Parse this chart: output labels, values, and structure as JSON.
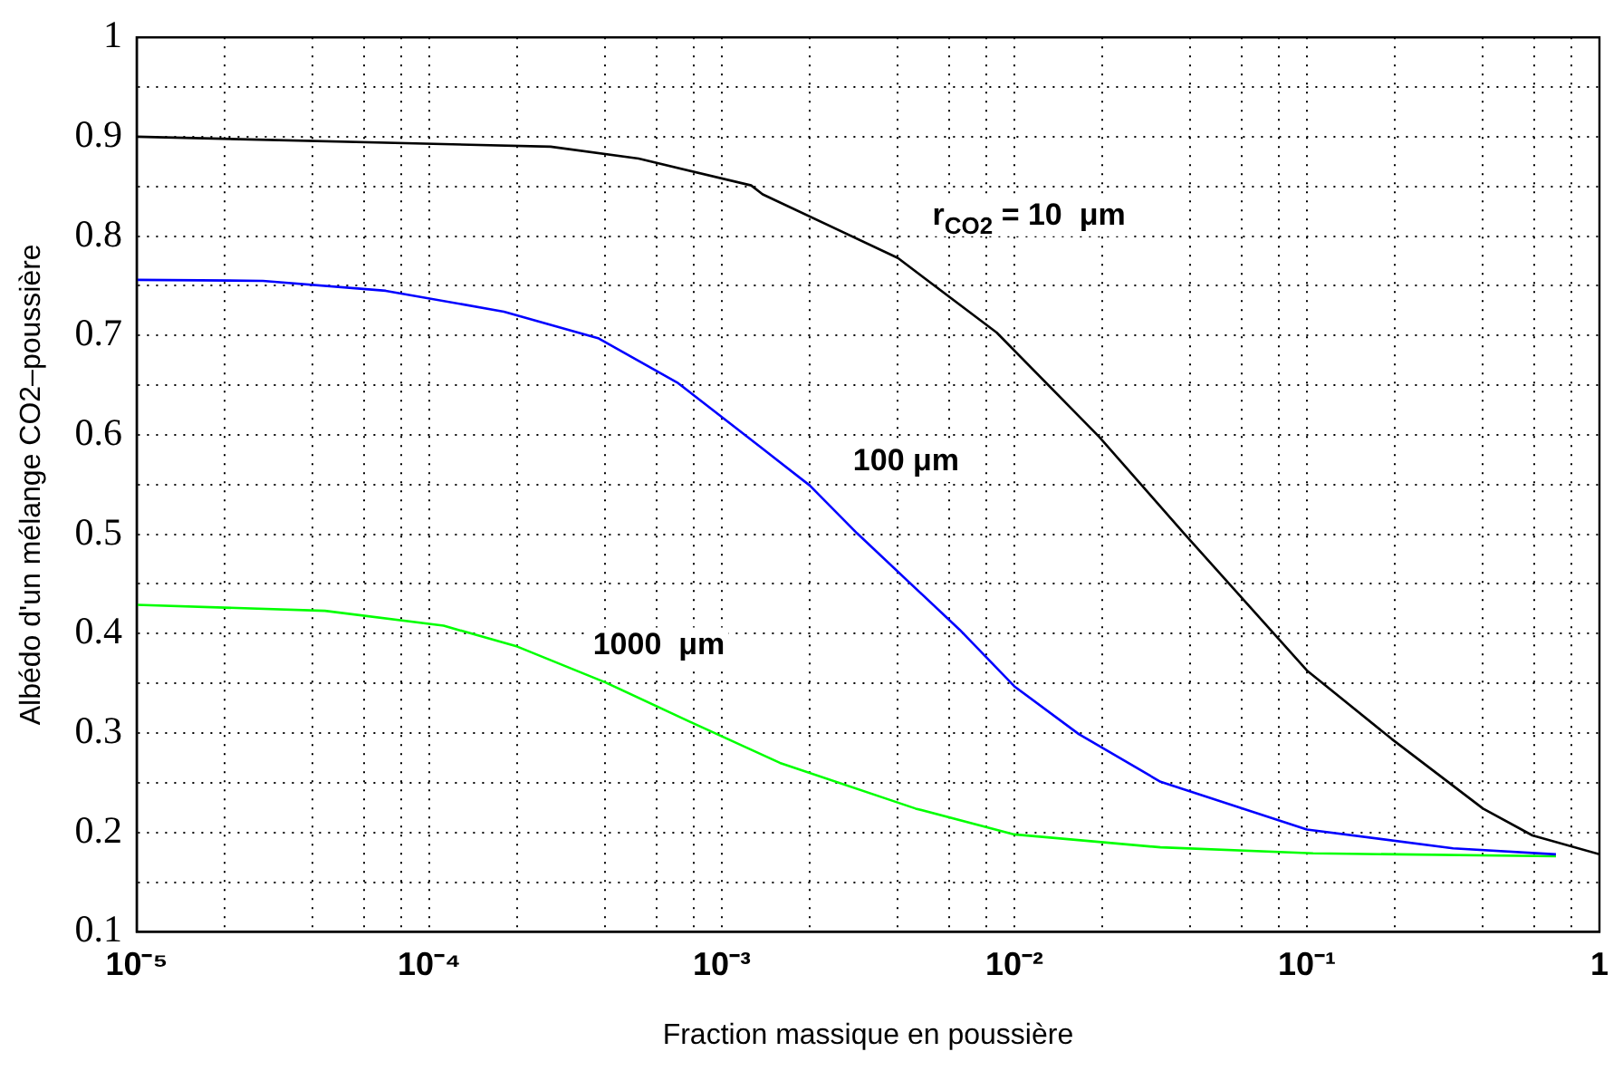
{
  "chart_data": {
    "type": "line",
    "xlabel": "Fraction massique en poussière",
    "ylabel": "Albédo d'un mélange CO2–poussière",
    "log": "x",
    "grid": true,
    "legend": false,
    "marker": "none",
    "line_style": "solid",
    "xlim": [
      1e-05,
      1
    ],
    "ylim": [
      0.1,
      1
    ],
    "xticks": [
      {
        "value": 1e-05,
        "label": "10⁻⁵"
      },
      {
        "value": 2e-05,
        "label": null
      },
      {
        "value": 4e-05,
        "label": null
      },
      {
        "value": 6e-05,
        "label": null
      },
      {
        "value": 8e-05,
        "label": null
      },
      {
        "value": 0.0001,
        "label": "10⁻⁴"
      },
      {
        "value": 0.0002,
        "label": null
      },
      {
        "value": 0.0004,
        "label": null
      },
      {
        "value": 0.0006,
        "label": null
      },
      {
        "value": 0.0008,
        "label": null
      },
      {
        "value": 0.001,
        "label": "10⁻³"
      },
      {
        "value": 0.002,
        "label": null
      },
      {
        "value": 0.004,
        "label": null
      },
      {
        "value": 0.006,
        "label": null
      },
      {
        "value": 0.008,
        "label": null
      },
      {
        "value": 0.01,
        "label": "10⁻²"
      },
      {
        "value": 0.02,
        "label": null
      },
      {
        "value": 0.04,
        "label": null
      },
      {
        "value": 0.06,
        "label": null
      },
      {
        "value": 0.08,
        "label": null
      },
      {
        "value": 0.1,
        "label": "10⁻¹"
      },
      {
        "value": 0.2,
        "label": null
      },
      {
        "value": 0.4,
        "label": null
      },
      {
        "value": 0.6,
        "label": null
      },
      {
        "value": 0.8,
        "label": null
      },
      1
    ],
    "yticks": [
      0.1,
      {
        "value": 0.15,
        "label": null
      },
      0.2,
      {
        "value": 0.25,
        "label": null
      },
      0.3,
      {
        "value": 0.35,
        "label": null
      },
      0.4,
      {
        "value": 0.45,
        "label": null
      },
      0.5,
      {
        "value": 0.55,
        "label": null
      },
      0.6,
      {
        "value": 0.65,
        "label": null
      },
      0.7,
      {
        "value": 0.75,
        "label": null
      },
      0.8,
      {
        "value": 0.85,
        "label": null
      },
      0.9,
      {
        "value": 0.95,
        "label": null
      },
      1
    ],
    "series": [
      {
        "color": "#000000",
        "x": [
          1e-05,
          0.00026,
          0.00052,
          0.00126,
          0.00138,
          0.004,
          0.0087,
          0.0195,
          0.038,
          0.1,
          0.195,
          0.4,
          0.59,
          1
        ],
        "values": [
          0.9,
          0.89,
          0.878,
          0.851,
          0.842,
          0.778,
          0.703,
          0.598,
          0.501,
          0.363,
          0.294,
          0.224,
          0.197,
          0.178
        ]
      },
      {
        "color": "#0000ff",
        "x": [
          1e-05,
          2.7e-05,
          7.1e-05,
          0.00018,
          0.00038,
          0.00071,
          0.00138,
          0.002,
          0.0029,
          0.0065,
          0.01,
          0.0166,
          0.0316,
          0.1,
          0.316,
          0.71
        ],
        "values": [
          0.756,
          0.755,
          0.745,
          0.724,
          0.697,
          0.652,
          0.586,
          0.549,
          0.501,
          0.404,
          0.347,
          0.299,
          0.251,
          0.203,
          0.184,
          0.178
        ]
      },
      {
        "color": "#00ff00",
        "x": [
          1e-05,
          4.4e-05,
          0.000112,
          0.0002,
          0.0004,
          0.00081,
          0.00158,
          0.0046,
          0.01,
          0.0316,
          0.105,
          0.71
        ],
        "values": [
          0.429,
          0.423,
          0.408,
          0.387,
          0.351,
          0.309,
          0.27,
          0.224,
          0.198,
          0.185,
          0.179,
          0.176
        ]
      }
    ],
    "annotations": [
      "r$_{CO2}$ = 10  μm",
      "100 μm",
      "1000  μm"
    ]
  }
}
